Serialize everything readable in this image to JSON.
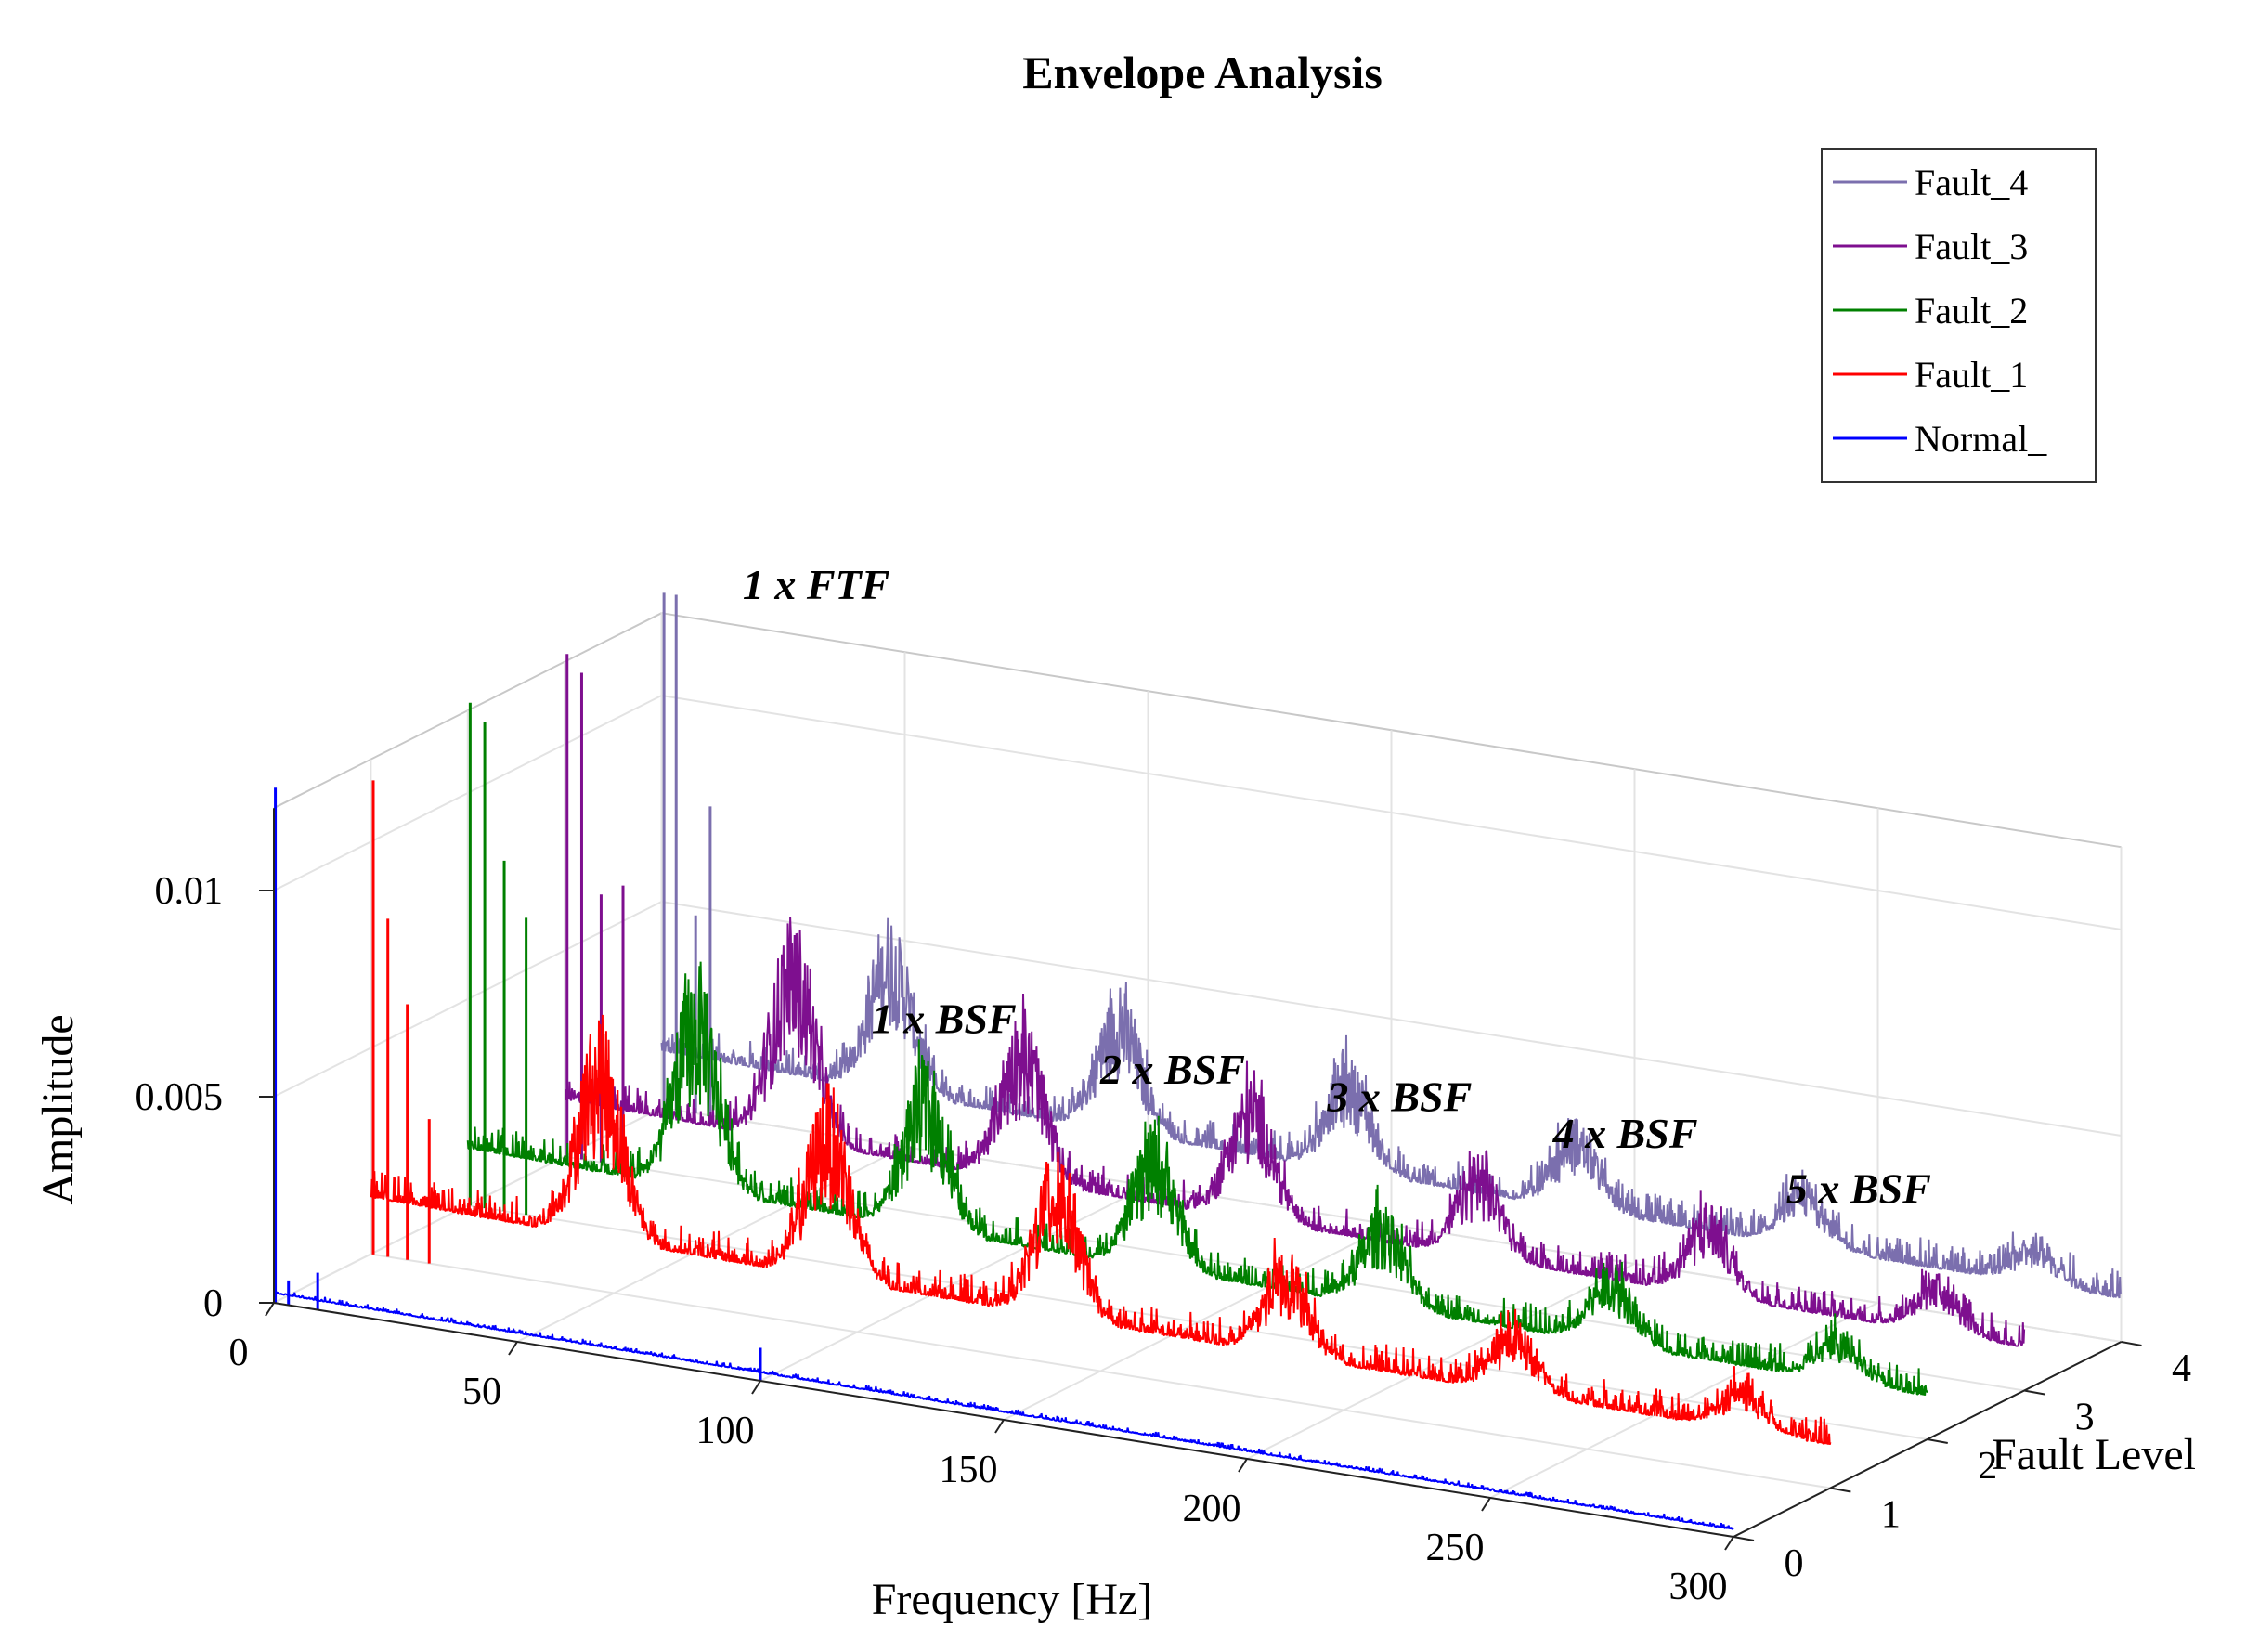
{
  "chart_data": {
    "type": "line",
    "view": "3d-waterfall",
    "title": "Envelope Analysis",
    "xlabel": "Frequency [Hz]",
    "ylabel": "Fault Level",
    "zlabel": "Amplitude",
    "xlim": [
      0,
      300
    ],
    "ylim": [
      0,
      4
    ],
    "zlim": [
      0,
      0.012
    ],
    "x_ticks": [
      0,
      50,
      100,
      150,
      200,
      250,
      300
    ],
    "x_tick_labels": [
      "0",
      "50",
      "100",
      "150",
      "200",
      "250",
      "300"
    ],
    "y_ticks": [
      0,
      1,
      2,
      3,
      4
    ],
    "y_tick_labels": [
      "0",
      "1",
      "2",
      "3",
      "4"
    ],
    "z_ticks": [
      0,
      0.005,
      0.01
    ],
    "z_tick_labels": [
      "0",
      "0.005",
      "0.01"
    ],
    "grid": true,
    "legend_position": "top-right",
    "legend": [
      "Fault_4",
      "Fault_3",
      "Fault_2",
      "Fault_1",
      "Normal_"
    ],
    "fundamental_frequencies_hz": {
      "FTF": 14.0,
      "BSF": 47.0
    },
    "annotations": [
      {
        "text": "1 x FTF",
        "x": 14,
        "level": 4
      },
      {
        "text": "1 x BSF",
        "x": 47,
        "level": 4
      },
      {
        "text": "2 x BSF",
        "x": 94,
        "level": 4
      },
      {
        "text": "3 x BSF",
        "x": 141,
        "level": 4
      },
      {
        "text": "4 x BSF",
        "x": 188,
        "level": 4
      },
      {
        "text": "5 x BSF",
        "x": 235,
        "level": 4
      }
    ],
    "series": [
      {
        "name": "Normal_",
        "level": 0,
        "color": "#0000ff",
        "baseline": 0.0002,
        "noise": 0.00012,
        "lines": [
          {
            "x": 0.3,
            "amp": 0.0125
          },
          {
            "x": 3.0,
            "amp": 0.0006
          },
          {
            "x": 9.0,
            "amp": 0.0009
          },
          {
            "x": 100.0,
            "amp": 0.0008
          }
        ],
        "humps": []
      },
      {
        "name": "Fault_1",
        "level": 1,
        "color": "#ff0000",
        "baseline": 0.0012,
        "noise": 0.0007,
        "lines": [
          {
            "x": 0.5,
            "amp": 0.0115
          },
          {
            "x": 3.5,
            "amp": 0.0082
          },
          {
            "x": 7.5,
            "amp": 0.0062
          },
          {
            "x": 12.0,
            "amp": 0.0035
          }
        ],
        "humps": [
          {
            "x": 47,
            "amp": 0.0055
          },
          {
            "x": 94,
            "amp": 0.0048
          },
          {
            "x": 141,
            "amp": 0.0042
          },
          {
            "x": 188,
            "amp": 0.0025
          },
          {
            "x": 235,
            "amp": 0.0018
          },
          {
            "x": 282,
            "amp": 0.0012
          }
        ]
      },
      {
        "name": "Fault_2",
        "level": 2,
        "color": "#008000",
        "baseline": 0.0012,
        "noise": 0.0007,
        "lines": [
          {
            "x": 0.5,
            "amp": 0.0122
          },
          {
            "x": 3.5,
            "amp": 0.0118
          },
          {
            "x": 7.5,
            "amp": 0.0085
          },
          {
            "x": 12.0,
            "amp": 0.0072
          }
        ],
        "humps": [
          {
            "x": 47,
            "amp": 0.0055
          },
          {
            "x": 94,
            "amp": 0.0042
          },
          {
            "x": 141,
            "amp": 0.0035
          },
          {
            "x": 188,
            "amp": 0.0025
          },
          {
            "x": 235,
            "amp": 0.002
          },
          {
            "x": 282,
            "amp": 0.0012
          }
        ]
      },
      {
        "name": "Fault_3",
        "level": 3,
        "color": "#7e0f8f",
        "baseline": 0.0012,
        "noise": 0.0007,
        "lines": [
          {
            "x": 0.5,
            "amp": 0.0122
          },
          {
            "x": 3.5,
            "amp": 0.0118
          },
          {
            "x": 7.5,
            "amp": 0.0065
          },
          {
            "x": 12.0,
            "amp": 0.0068
          }
        ],
        "humps": [
          {
            "x": 47,
            "amp": 0.0055
          },
          {
            "x": 94,
            "amp": 0.0042
          },
          {
            "x": 141,
            "amp": 0.0035
          },
          {
            "x": 188,
            "amp": 0.0025
          },
          {
            "x": 235,
            "amp": 0.0022
          },
          {
            "x": 282,
            "amp": 0.0014
          }
        ]
      },
      {
        "name": "Fault_4",
        "level": 4,
        "color": "#7b6fae",
        "baseline": 0.0012,
        "noise": 0.0007,
        "lines": [
          {
            "x": 0.5,
            "amp": 0.0125
          },
          {
            "x": 3.0,
            "amp": 0.0125
          },
          {
            "x": 7.0,
            "amp": 0.0048
          },
          {
            "x": 10.0,
            "amp": 0.0075
          }
        ],
        "humps": [
          {
            "x": 47,
            "amp": 0.0042
          },
          {
            "x": 94,
            "amp": 0.0035
          },
          {
            "x": 141,
            "amp": 0.0028
          },
          {
            "x": 188,
            "amp": 0.0022
          },
          {
            "x": 235,
            "amp": 0.0016
          },
          {
            "x": 282,
            "amp": 0.001
          }
        ]
      }
    ]
  }
}
